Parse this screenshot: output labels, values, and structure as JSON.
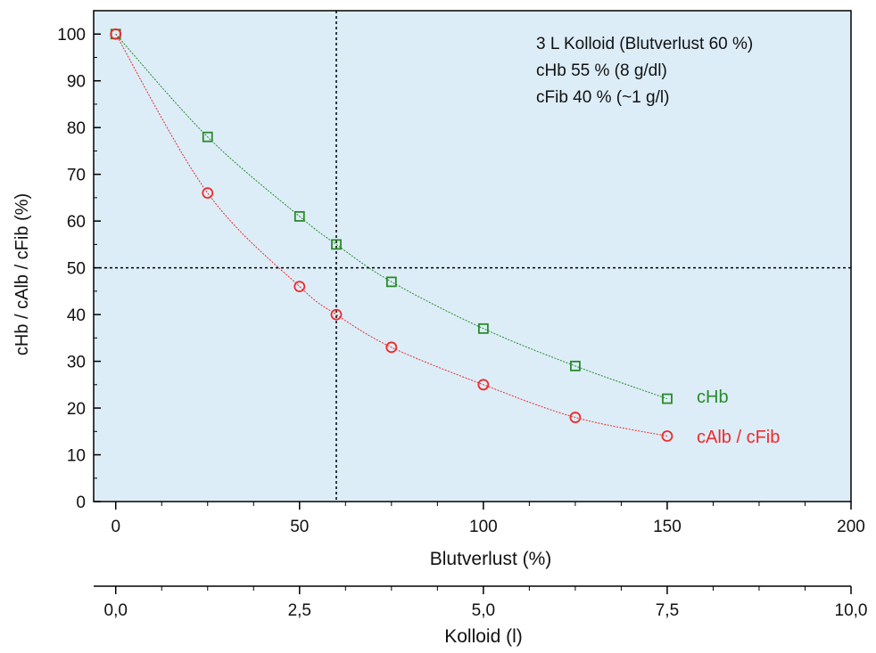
{
  "chart_data": {
    "type": "scatter",
    "title": "",
    "annotation": [
      "3 L Kolloid (Blutverlust 60 %)",
      "cHb 55 % (8 g/dl)",
      "cFib 40 % (~1 g/l)"
    ],
    "xlabel": "Blutverlust (%)",
    "x2label": "Kolloid (l)",
    "ylabel": "cHb / cAlb / cFib (%)",
    "xlim": [
      -6,
      200
    ],
    "ylim": [
      0,
      105
    ],
    "x_ticks": [
      0,
      50,
      100,
      150,
      200
    ],
    "x_tick_labels": [
      "0",
      "50",
      "100",
      "150",
      "200"
    ],
    "x2_ticks": [
      0,
      50,
      100,
      150,
      200
    ],
    "x2_tick_labels": [
      "0,0",
      "2,5",
      "5,0",
      "7,5",
      "10,0"
    ],
    "y_ticks": [
      0,
      10,
      20,
      30,
      40,
      50,
      60,
      70,
      80,
      90,
      100
    ],
    "y_tick_labels": [
      "0",
      "10",
      "20",
      "30",
      "40",
      "50",
      "60",
      "70",
      "80",
      "90",
      "100"
    ],
    "reference_lines": {
      "x": 60,
      "y": 50
    },
    "grid": false,
    "background": "#dcedf8",
    "series": [
      {
        "name": "cHb",
        "marker": "square",
        "color": "#2a8a2a",
        "x": [
          0,
          25,
          50,
          60,
          75,
          100,
          125,
          150
        ],
        "y": [
          100,
          78,
          61,
          55,
          47,
          37,
          29,
          22
        ]
      },
      {
        "name": "cAlb / cFib",
        "marker": "circle",
        "color": "#ee2a2a",
        "x": [
          0,
          25,
          50,
          60,
          75,
          100,
          125,
          150
        ],
        "y": [
          100,
          66,
          46,
          40,
          33,
          25,
          18,
          14
        ]
      }
    ],
    "legend_placement": "inline-right"
  }
}
